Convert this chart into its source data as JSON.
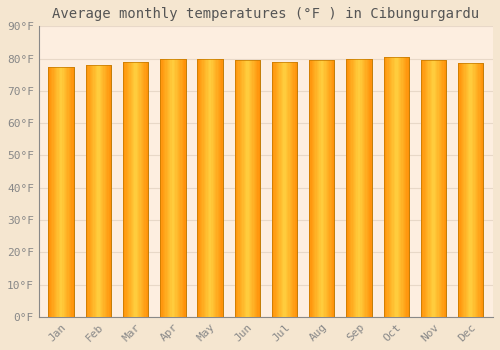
{
  "title": "Average monthly temperatures (°F ) in Cibungurgardu",
  "months": [
    "Jan",
    "Feb",
    "Mar",
    "Apr",
    "May",
    "Jun",
    "Jul",
    "Aug",
    "Sep",
    "Oct",
    "Nov",
    "Dec"
  ],
  "values": [
    77.5,
    78.0,
    79.0,
    80.0,
    80.0,
    79.5,
    79.0,
    79.5,
    80.0,
    80.5,
    79.5,
    78.5
  ],
  "bar_color_edge": "#E8920A",
  "bar_color_center": "#FFD040",
  "bar_edge_color": "#C07800",
  "ylim": [
    0,
    90
  ],
  "ytick_step": 10,
  "background_color": "#F5E6D0",
  "plot_bg_color": "#FDEEE0",
  "grid_color": "#E8D8C8",
  "title_fontsize": 10,
  "tick_fontsize": 8,
  "title_color": "#555555",
  "tick_color": "#888888"
}
